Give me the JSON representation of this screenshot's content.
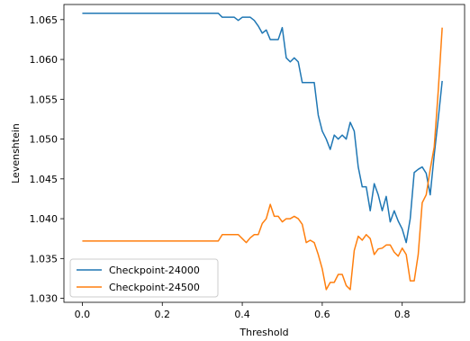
{
  "chart_data": {
    "type": "line",
    "xlabel": "Threshold",
    "ylabel": "Levenshtein",
    "xlim": [
      -0.046,
      0.956
    ],
    "ylim": [
      1.0295,
      1.0669
    ],
    "xticks": [
      {
        "value": 0.0,
        "label": "0.0"
      },
      {
        "value": 0.2,
        "label": "0.2"
      },
      {
        "value": 0.4,
        "label": "0.4"
      },
      {
        "value": 0.6,
        "label": "0.6"
      },
      {
        "value": 0.8,
        "label": "0.8"
      }
    ],
    "yticks": [
      {
        "value": 1.03,
        "label": "1.030"
      },
      {
        "value": 1.035,
        "label": "1.035"
      },
      {
        "value": 1.04,
        "label": "1.040"
      },
      {
        "value": 1.045,
        "label": "1.045"
      },
      {
        "value": 1.05,
        "label": "1.050"
      },
      {
        "value": 1.055,
        "label": "1.055"
      },
      {
        "value": 1.06,
        "label": "1.060"
      },
      {
        "value": 1.065,
        "label": "1.065"
      }
    ],
    "grid": false,
    "legend_position": "lower-left",
    "series": [
      {
        "name": "Checkpoint-24000",
        "color": "#1f77b4",
        "points": [
          [
            0.0,
            1.0658
          ],
          [
            0.05,
            1.0658
          ],
          [
            0.1,
            1.0658
          ],
          [
            0.15,
            1.0658
          ],
          [
            0.2,
            1.0658
          ],
          [
            0.25,
            1.0658
          ],
          [
            0.3,
            1.0658
          ],
          [
            0.34,
            1.0658
          ],
          [
            0.35,
            1.0653
          ],
          [
            0.36,
            1.0653
          ],
          [
            0.37,
            1.0653
          ],
          [
            0.38,
            1.0653
          ],
          [
            0.39,
            1.0649
          ],
          [
            0.4,
            1.0653
          ],
          [
            0.41,
            1.0653
          ],
          [
            0.42,
            1.0653
          ],
          [
            0.43,
            1.0649
          ],
          [
            0.44,
            1.0642
          ],
          [
            0.45,
            1.0633
          ],
          [
            0.46,
            1.0637
          ],
          [
            0.47,
            1.0625
          ],
          [
            0.48,
            1.0625
          ],
          [
            0.49,
            1.0625
          ],
          [
            0.5,
            1.064
          ],
          [
            0.51,
            1.0602
          ],
          [
            0.52,
            1.0597
          ],
          [
            0.53,
            1.0602
          ],
          [
            0.54,
            1.0597
          ],
          [
            0.55,
            1.0571
          ],
          [
            0.56,
            1.0571
          ],
          [
            0.57,
            1.0571
          ],
          [
            0.58,
            1.0571
          ],
          [
            0.59,
            1.053
          ],
          [
            0.6,
            1.051
          ],
          [
            0.61,
            1.05
          ],
          [
            0.62,
            1.0487
          ],
          [
            0.63,
            1.0505
          ],
          [
            0.64,
            1.05
          ],
          [
            0.65,
            1.0505
          ],
          [
            0.66,
            1.05
          ],
          [
            0.67,
            1.0521
          ],
          [
            0.68,
            1.051
          ],
          [
            0.69,
            1.0465
          ],
          [
            0.7,
            1.044
          ],
          [
            0.71,
            1.044
          ],
          [
            0.72,
            1.041
          ],
          [
            0.73,
            1.0444
          ],
          [
            0.74,
            1.043
          ],
          [
            0.75,
            1.041
          ],
          [
            0.76,
            1.0428
          ],
          [
            0.77,
            1.0396
          ],
          [
            0.78,
            1.041
          ],
          [
            0.79,
            1.0397
          ],
          [
            0.8,
            1.0387
          ],
          [
            0.81,
            1.037
          ],
          [
            0.82,
            1.04
          ],
          [
            0.83,
            1.0458
          ],
          [
            0.84,
            1.0462
          ],
          [
            0.85,
            1.0465
          ],
          [
            0.86,
            1.0457
          ],
          [
            0.87,
            1.043
          ],
          [
            0.88,
            1.048
          ],
          [
            0.89,
            1.0525
          ],
          [
            0.9,
            1.0573
          ]
        ]
      },
      {
        "name": "Checkpoint-24500",
        "color": "#ff7f0e",
        "points": [
          [
            0.0,
            1.0372
          ],
          [
            0.05,
            1.0372
          ],
          [
            0.1,
            1.0372
          ],
          [
            0.15,
            1.0372
          ],
          [
            0.2,
            1.0372
          ],
          [
            0.25,
            1.0372
          ],
          [
            0.3,
            1.0372
          ],
          [
            0.34,
            1.0372
          ],
          [
            0.35,
            1.038
          ],
          [
            0.36,
            1.038
          ],
          [
            0.37,
            1.038
          ],
          [
            0.38,
            1.038
          ],
          [
            0.39,
            1.038
          ],
          [
            0.4,
            1.0375
          ],
          [
            0.41,
            1.037
          ],
          [
            0.42,
            1.0376
          ],
          [
            0.43,
            1.038
          ],
          [
            0.44,
            1.038
          ],
          [
            0.45,
            1.0394
          ],
          [
            0.46,
            1.04
          ],
          [
            0.47,
            1.0418
          ],
          [
            0.48,
            1.0403
          ],
          [
            0.49,
            1.0403
          ],
          [
            0.5,
            1.0396
          ],
          [
            0.51,
            1.04
          ],
          [
            0.52,
            1.04
          ],
          [
            0.53,
            1.0403
          ],
          [
            0.54,
            1.04
          ],
          [
            0.55,
            1.0393
          ],
          [
            0.56,
            1.037
          ],
          [
            0.57,
            1.0373
          ],
          [
            0.58,
            1.037
          ],
          [
            0.59,
            1.0355
          ],
          [
            0.6,
            1.0337
          ],
          [
            0.61,
            1.0311
          ],
          [
            0.62,
            1.032
          ],
          [
            0.63,
            1.032
          ],
          [
            0.64,
            1.033
          ],
          [
            0.65,
            1.033
          ],
          [
            0.66,
            1.0316
          ],
          [
            0.67,
            1.0311
          ],
          [
            0.68,
            1.036
          ],
          [
            0.69,
            1.0378
          ],
          [
            0.7,
            1.0373
          ],
          [
            0.71,
            1.038
          ],
          [
            0.72,
            1.0375
          ],
          [
            0.73,
            1.0355
          ],
          [
            0.74,
            1.0362
          ],
          [
            0.75,
            1.0363
          ],
          [
            0.76,
            1.0367
          ],
          [
            0.77,
            1.0367
          ],
          [
            0.78,
            1.0358
          ],
          [
            0.79,
            1.0353
          ],
          [
            0.8,
            1.0363
          ],
          [
            0.81,
            1.0355
          ],
          [
            0.82,
            1.0322
          ],
          [
            0.83,
            1.0322
          ],
          [
            0.84,
            1.0355
          ],
          [
            0.85,
            1.042
          ],
          [
            0.86,
            1.043
          ],
          [
            0.87,
            1.0462
          ],
          [
            0.88,
            1.049
          ],
          [
            0.89,
            1.056
          ],
          [
            0.9,
            1.064
          ]
        ]
      }
    ]
  }
}
